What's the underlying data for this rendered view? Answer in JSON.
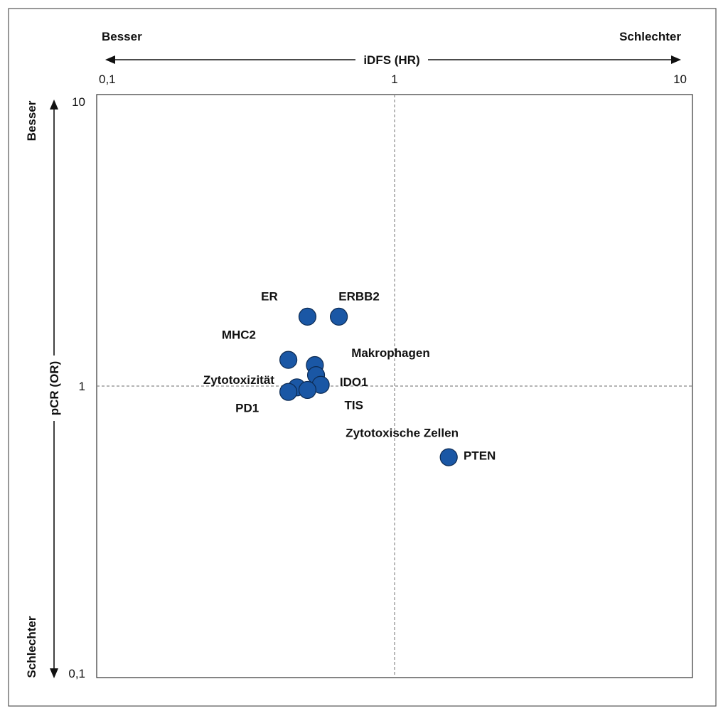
{
  "chart_data": {
    "type": "scatter",
    "x_axis": {
      "label": "iDFS (HR)",
      "scale": "log",
      "range": [
        0.1,
        10
      ],
      "ticks": [
        {
          "value": 0.1,
          "label": "0,1"
        },
        {
          "value": 1,
          "label": "1"
        },
        {
          "value": 10,
          "label": "10"
        }
      ],
      "left_label": "Besser",
      "right_label": "Schlechter"
    },
    "y_axis": {
      "label": "pCR (OR)",
      "scale": "log",
      "range": [
        0.1,
        10
      ],
      "ticks": [
        {
          "value": 10,
          "label": "10"
        },
        {
          "value": 1,
          "label": "1"
        },
        {
          "value": 0.1,
          "label": "0,1"
        }
      ],
      "top_label": "Besser",
      "bottom_label": "Schlechter"
    },
    "reference_lines": {
      "x": 1,
      "y": 1,
      "style": "dashed"
    },
    "points": [
      {
        "x": 0.51,
        "y": 1.73
      },
      {
        "x": 0.65,
        "y": 1.73
      },
      {
        "x": 0.44,
        "y": 1.23
      },
      {
        "x": 0.54,
        "y": 1.18
      },
      {
        "x": 0.545,
        "y": 1.09
      },
      {
        "x": 0.565,
        "y": 1.01
      },
      {
        "x": 0.47,
        "y": 0.99
      },
      {
        "x": 0.51,
        "y": 0.97
      },
      {
        "x": 0.44,
        "y": 0.955
      },
      {
        "x": 1.52,
        "y": 0.57
      }
    ],
    "labels": [
      {
        "text": "ER",
        "x": 0.38,
        "y": 2.03
      },
      {
        "text": "ERBB2",
        "x": 0.76,
        "y": 2.03
      },
      {
        "text": "MHC2",
        "x": 0.3,
        "y": 1.5
      },
      {
        "text": "Makrophagen",
        "x": 0.97,
        "y": 1.3
      },
      {
        "text": "Zytotoxizität",
        "x": 0.3,
        "y": 1.05
      },
      {
        "text": "IDO1",
        "x": 0.73,
        "y": 1.03
      },
      {
        "text": "TIS",
        "x": 0.73,
        "y": 0.86
      },
      {
        "text": "PD1",
        "x": 0.32,
        "y": 0.84
      },
      {
        "text": "Zytotoxische Zellen",
        "x": 1.06,
        "y": 0.69
      },
      {
        "text": "PTEN",
        "x": 1.93,
        "y": 0.577
      }
    ],
    "point_color": "#1a57a5",
    "point_stroke": "#0c2a52"
  }
}
